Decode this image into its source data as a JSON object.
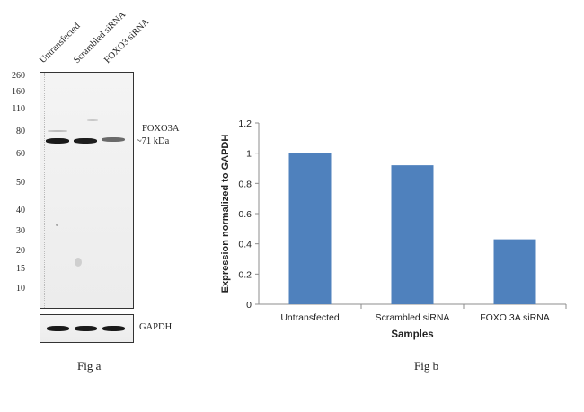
{
  "figure_a": {
    "caption": "Fig a",
    "lanes": [
      "Untransfected",
      "Scrambled siRNA",
      "FOXO3 siRNA"
    ],
    "mw_markers": [
      "260",
      "160",
      "110",
      "80",
      "60",
      "50",
      "40",
      "30",
      "20",
      "15",
      "10"
    ],
    "target_label": "FOXO3A",
    "size_label": "~71 kDa",
    "loading_control_label": "GAPDH"
  },
  "figure_b": {
    "caption": "Fig b"
  },
  "chart_data": {
    "type": "bar",
    "title": "",
    "categories": [
      "Untransfected",
      "Scrambled siRNA",
      "FOXO 3A siRNA"
    ],
    "values": [
      1.0,
      0.92,
      0.43
    ],
    "xlabel": "Samples",
    "ylabel": "Expression  normalized to GAPDH",
    "ylim": [
      0,
      1.2
    ],
    "yticks": [
      "0",
      "0.2",
      "0.4",
      "0.6",
      "0.8",
      "1",
      "1.2"
    ],
    "grid": false,
    "legend": "none",
    "bar_color": "#4f81bd"
  }
}
